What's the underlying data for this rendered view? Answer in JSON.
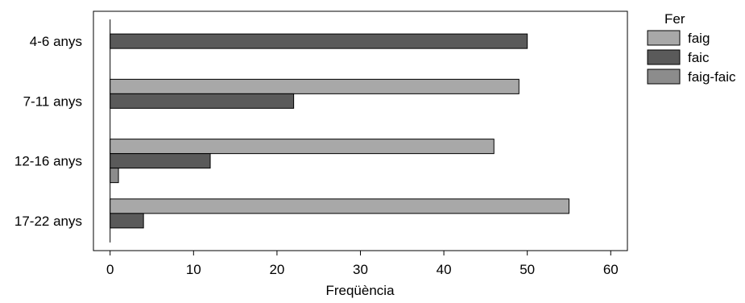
{
  "chart_data": {
    "type": "bar",
    "orientation": "horizontal",
    "title": "",
    "xlabel": "Freqüència",
    "ylabel": "",
    "xlim": [
      -2,
      62
    ],
    "xticks": [
      0,
      10,
      20,
      30,
      40,
      50,
      60
    ],
    "xtick_labels": [
      "0",
      "10",
      "20",
      "30",
      "40",
      "50",
      "60"
    ],
    "categories": [
      "4-6 anys",
      "7-11 anys",
      "12-16 anys",
      "17-22 anys"
    ],
    "legend_title": "Fer",
    "legend_placement": "right, outside plot",
    "grid": false,
    "series": [
      {
        "name": "faig",
        "color": "#a8a8a8",
        "values": [
          0,
          49,
          46,
          55
        ]
      },
      {
        "name": "faic",
        "color": "#5a5a5a",
        "values": [
          50,
          22,
          12,
          4
        ]
      },
      {
        "name": "faig-faic",
        "color": "#8c8c8c",
        "values": [
          0,
          0,
          1,
          0
        ]
      }
    ]
  }
}
